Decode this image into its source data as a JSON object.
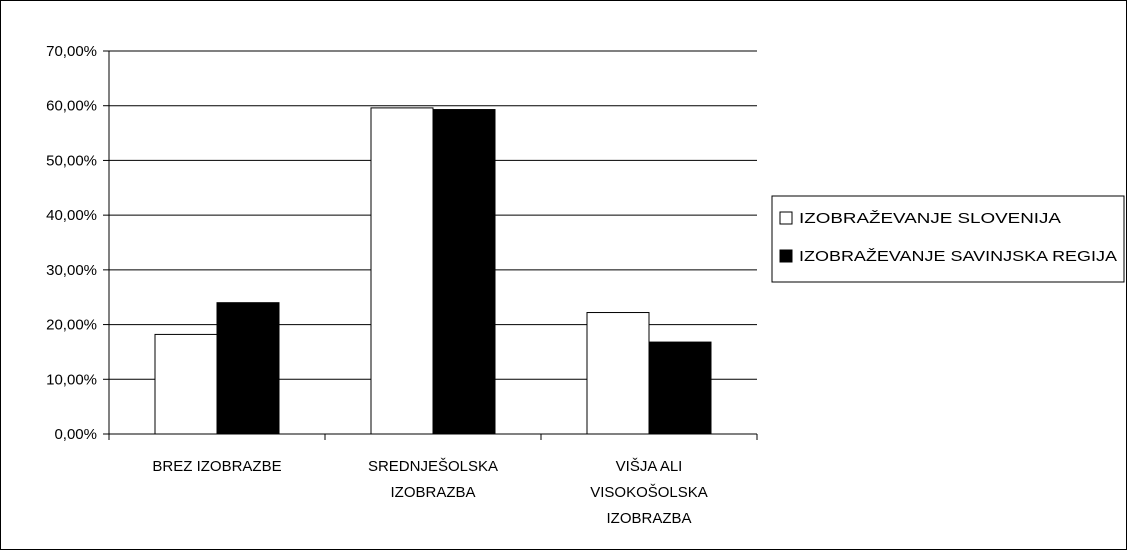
{
  "chart_data": {
    "type": "bar",
    "categories": [
      [
        "BREZ IZOBRAZBE"
      ],
      [
        "SREDNJEŠOLSKA",
        "IZOBRAZBA"
      ],
      [
        "VIŠJA ALI",
        "VISOKOŠOLSKA",
        "IZOBRAZBA"
      ]
    ],
    "series": [
      {
        "name": "IZOBRAŽEVANJE SLOVENIJA",
        "values": [
          18.2,
          59.6,
          22.2
        ],
        "fill": "#ffffff"
      },
      {
        "name": "IZOBRAŽEVANJE SAVINJSKA REGIJA",
        "values": [
          24.0,
          59.3,
          16.8
        ],
        "fill": "#000000"
      }
    ],
    "yticks": [
      "0,00%",
      "10,00%",
      "20,00%",
      "30,00%",
      "40,00%",
      "50,00%",
      "60,00%",
      "70,00%"
    ],
    "ylim": [
      0,
      70
    ],
    "grid": true,
    "legend_position": "right"
  }
}
